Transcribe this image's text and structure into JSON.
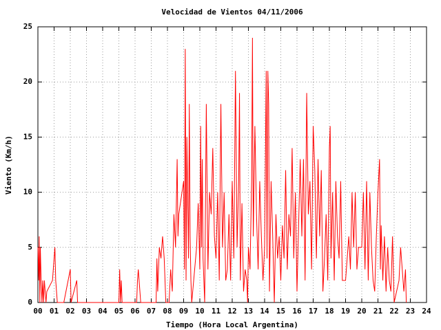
{
  "chart_data": {
    "type": "line",
    "title": "Velocidad de Vientos 04/11/2006",
    "x_label": "Tiempo (Hora Local Argentina)",
    "y_label": "Viento (Km/h)",
    "color": "#ff0000",
    "grid": true,
    "xlim": [
      0,
      24
    ],
    "ylim": [
      0,
      25
    ],
    "yticks": [
      0,
      5,
      10,
      15,
      20,
      25
    ],
    "xticks": [
      {
        "value": 0,
        "label": "00"
      },
      {
        "value": 1,
        "label": "01"
      },
      {
        "value": 2,
        "label": "02"
      },
      {
        "value": 3,
        "label": "03"
      },
      {
        "value": 4,
        "label": "04"
      },
      {
        "value": 5,
        "label": "05"
      },
      {
        "value": 6,
        "label": "06"
      },
      {
        "value": 7,
        "label": "07"
      },
      {
        "value": 8,
        "label": "08"
      },
      {
        "value": 9,
        "label": "09"
      },
      10,
      11,
      12,
      13,
      14,
      15,
      16,
      17,
      18,
      19,
      20,
      21,
      22,
      23,
      24
    ],
    "x": [
      0.0,
      0.05,
      0.08,
      0.12,
      0.15,
      0.2,
      0.25,
      0.3,
      0.35,
      0.4,
      0.5,
      0.55,
      0.9,
      1.05,
      1.1,
      1.2,
      1.6,
      2.0,
      2.05,
      2.4,
      2.45,
      5.0,
      5.05,
      5.1,
      5.15,
      5.2,
      6.1,
      6.15,
      6.2,
      6.3,
      6.35,
      7.3,
      7.35,
      7.4,
      7.5,
      7.6,
      7.7,
      7.8,
      7.9,
      8.1,
      8.2,
      8.3,
      8.4,
      8.5,
      8.6,
      8.65,
      8.7,
      9.0,
      9.05,
      9.1,
      9.15,
      9.2,
      9.3,
      9.35,
      9.4,
      9.45,
      9.5,
      9.8,
      9.9,
      10.0,
      10.05,
      10.1,
      10.15,
      10.2,
      10.3,
      10.4,
      10.5,
      10.6,
      10.7,
      10.8,
      10.9,
      11.0,
      11.1,
      11.2,
      11.3,
      11.4,
      11.5,
      11.6,
      11.7,
      11.8,
      11.9,
      12.0,
      12.1,
      12.2,
      12.3,
      12.4,
      12.45,
      12.5,
      12.6,
      12.7,
      12.8,
      12.9,
      12.95,
      13.0,
      13.1,
      13.2,
      13.25,
      13.3,
      13.4,
      13.5,
      13.6,
      13.7,
      13.8,
      13.9,
      14.0,
      14.1,
      14.15,
      14.2,
      14.25,
      14.3,
      14.4,
      14.5,
      14.6,
      14.7,
      14.8,
      14.9,
      15.0,
      15.1,
      15.2,
      15.3,
      15.4,
      15.5,
      15.6,
      15.7,
      15.8,
      15.9,
      16.0,
      16.2,
      16.3,
      16.4,
      16.5,
      16.6,
      16.7,
      16.8,
      16.9,
      17.0,
      17.1,
      17.2,
      17.3,
      17.4,
      17.5,
      17.6,
      17.7,
      17.8,
      17.9,
      18.0,
      18.05,
      18.1,
      18.2,
      18.3,
      18.4,
      18.5,
      18.6,
      18.7,
      18.8,
      19.0,
      19.2,
      19.3,
      19.4,
      19.5,
      19.6,
      19.7,
      19.8,
      20.0,
      20.1,
      20.2,
      20.3,
      20.4,
      20.5,
      20.6,
      20.7,
      20.8,
      20.9,
      21.0,
      21.1,
      21.15,
      21.2,
      21.3,
      21.4,
      21.5,
      21.6,
      21.7,
      21.8,
      21.9,
      22.0,
      22.3,
      22.4,
      22.5,
      22.6,
      22.7,
      22.75
    ],
    "values": [
      5,
      2,
      6,
      0,
      5,
      2,
      0,
      2,
      0,
      2,
      0,
      1,
      2,
      5,
      2,
      0,
      0,
      3,
      0,
      2,
      0,
      0,
      3,
      0,
      2,
      0,
      0,
      2,
      3,
      1,
      0,
      0,
      4,
      1,
      5,
      4,
      6,
      4,
      0,
      0,
      3,
      1,
      8,
      5,
      13,
      6,
      8,
      11,
      3,
      23,
      2,
      15,
      4,
      18,
      6,
      2,
      0,
      5,
      9,
      3,
      16,
      5,
      13,
      4,
      0,
      18,
      3,
      10,
      8,
      14,
      6,
      4,
      10,
      2,
      18,
      5,
      10,
      2,
      3,
      8,
      2,
      11,
      4,
      21,
      5,
      11,
      19,
      2,
      9,
      1,
      3,
      2,
      0,
      5,
      3,
      11,
      24,
      6,
      16,
      8,
      3,
      11,
      6,
      2,
      5,
      21,
      4,
      21,
      18,
      1,
      11,
      6,
      0,
      8,
      4,
      6,
      2,
      7,
      4,
      12,
      3,
      8,
      6,
      14,
      4,
      10,
      1,
      13,
      6,
      13,
      2,
      19,
      8,
      11,
      3,
      16,
      12,
      4,
      13,
      6,
      12,
      1,
      4,
      8,
      2,
      14,
      16,
      4,
      10,
      2,
      11,
      6,
      4,
      11,
      2,
      2,
      6,
      3,
      10,
      5,
      10,
      3,
      5,
      5,
      10,
      3,
      11,
      2,
      10,
      5,
      2,
      1,
      6,
      10,
      13,
      3,
      7,
      2,
      6,
      1,
      5,
      2,
      1,
      6,
      0,
      2,
      5,
      3,
      1,
      3,
      0
    ]
  }
}
